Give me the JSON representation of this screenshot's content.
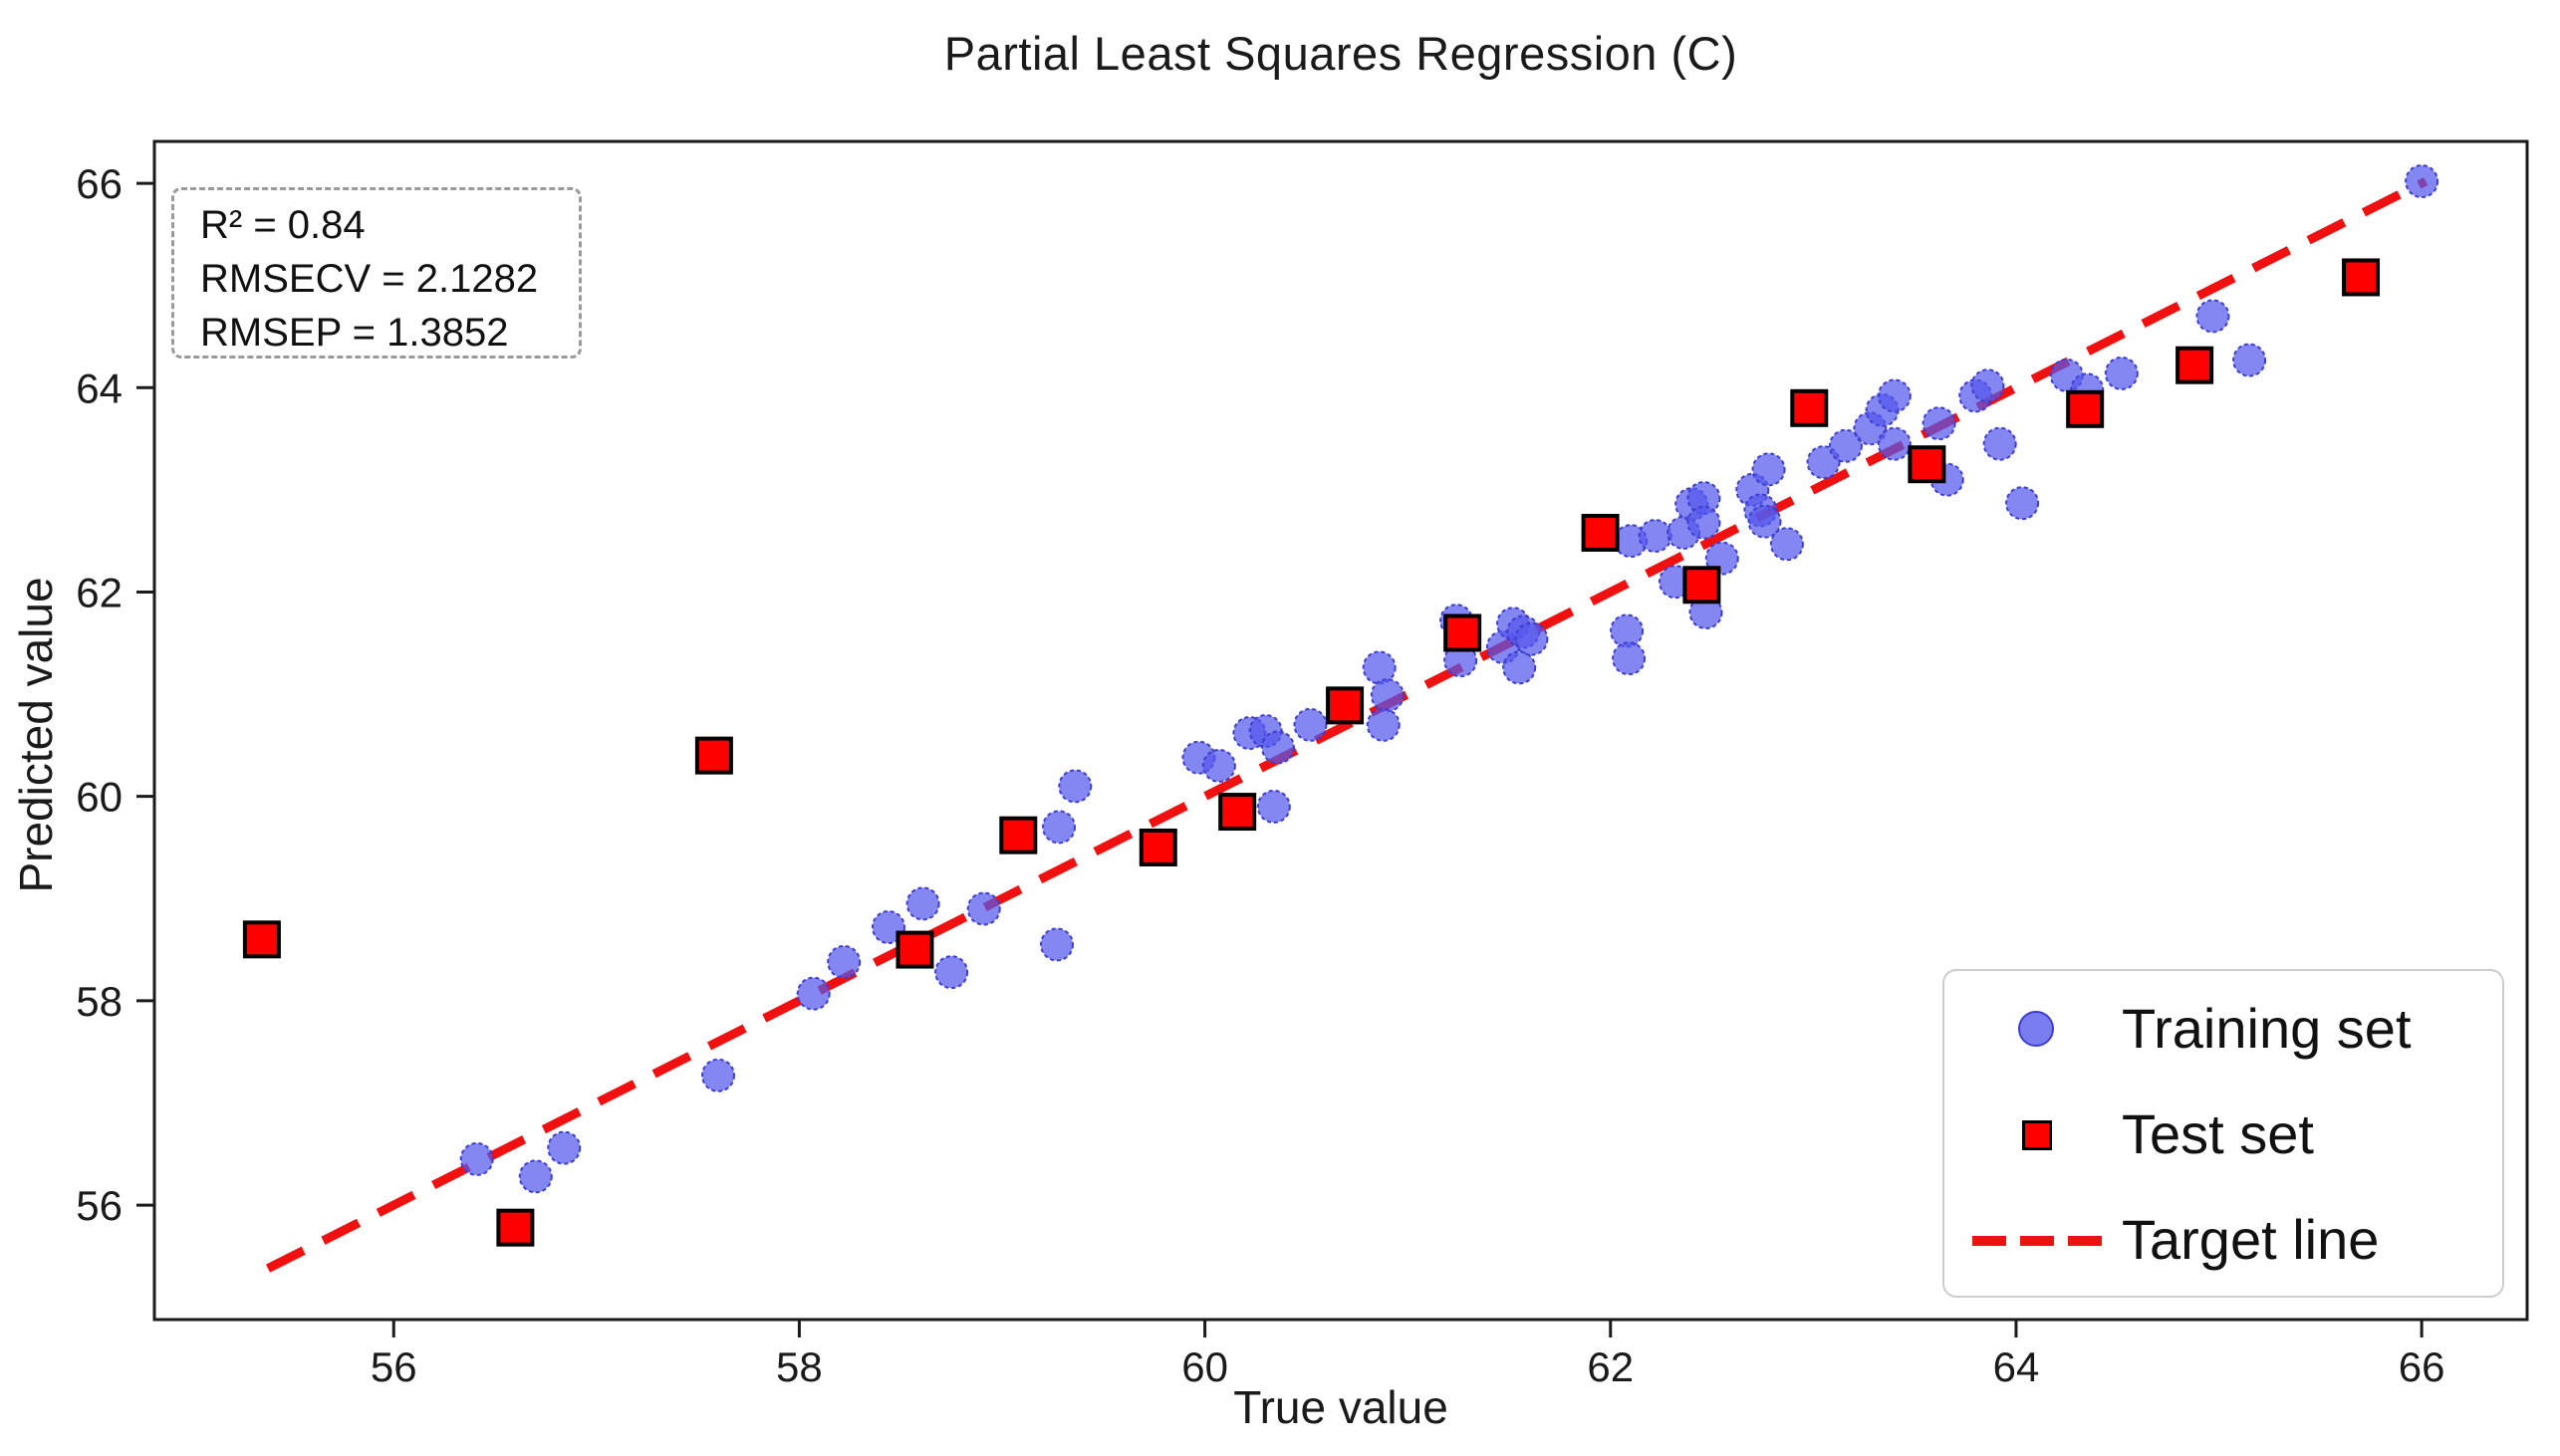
{
  "title": "Partial Least Squares Regression (C)",
  "stats_box": {
    "lines": [
      "R² = 0.84",
      "RMSECV = 2.1282",
      "RMSEP = 1.3852"
    ]
  },
  "legend": {
    "position": "lower right",
    "entries": [
      {
        "label": "Training set",
        "marker": "circle",
        "color": "#5558eb"
      },
      {
        "label": "Test set",
        "marker": "square",
        "color": "#fe0000"
      },
      {
        "label": "Target line",
        "marker": "dashed-line",
        "color": "#f01010"
      }
    ]
  },
  "chart_data": {
    "type": "scatter",
    "title": "Partial Least Squares Regression (C)",
    "xlabel": "True value",
    "ylabel": "Predicted value",
    "xlim": [
      54.82,
      66.52
    ],
    "ylim": [
      54.88,
      66.41
    ],
    "xticks": [
      56,
      58,
      60,
      62,
      64,
      66
    ],
    "yticks": [
      56,
      58,
      60,
      62,
      64,
      66
    ],
    "grid": false,
    "target_line": {
      "x1": 55.38,
      "y1": 55.38,
      "x2": 66.02,
      "y2": 66.02,
      "style": "dashed",
      "color": "#f01010"
    },
    "series": [
      {
        "name": "Training set",
        "marker": "circle",
        "fill": "rgba(85,88,235,0.72)",
        "edge": "#3c3ed2",
        "points": [
          [
            56.41,
            56.45
          ],
          [
            56.7,
            56.28
          ],
          [
            56.84,
            56.56
          ],
          [
            57.6,
            57.27
          ],
          [
            58.07,
            58.07
          ],
          [
            58.22,
            58.38
          ],
          [
            58.44,
            58.72
          ],
          [
            58.61,
            58.95
          ],
          [
            58.75,
            58.28
          ],
          [
            58.91,
            58.9
          ],
          [
            59.27,
            58.55
          ],
          [
            59.28,
            59.7
          ],
          [
            59.36,
            60.1
          ],
          [
            59.97,
            60.38
          ],
          [
            60.07,
            60.3
          ],
          [
            60.22,
            60.62
          ],
          [
            60.3,
            60.64
          ],
          [
            60.36,
            60.48
          ],
          [
            60.52,
            60.7
          ],
          [
            60.34,
            59.9
          ],
          [
            60.86,
            61.26
          ],
          [
            60.9,
            60.99
          ],
          [
            60.88,
            60.7
          ],
          [
            61.24,
            61.72
          ],
          [
            61.26,
            61.33
          ],
          [
            61.47,
            61.46
          ],
          [
            61.52,
            61.69
          ],
          [
            61.57,
            61.61
          ],
          [
            61.61,
            61.54
          ],
          [
            61.55,
            61.26
          ],
          [
            62.08,
            61.62
          ],
          [
            62.09,
            61.35
          ],
          [
            62.32,
            62.1
          ],
          [
            62.47,
            61.8
          ],
          [
            62.1,
            62.5
          ],
          [
            62.22,
            62.55
          ],
          [
            62.36,
            62.58
          ],
          [
            62.4,
            62.86
          ],
          [
            62.46,
            62.92
          ],
          [
            62.46,
            62.68
          ],
          [
            62.55,
            62.33
          ],
          [
            62.7,
            63.0
          ],
          [
            62.74,
            62.8
          ],
          [
            62.76,
            62.69
          ],
          [
            62.87,
            62.47
          ],
          [
            62.78,
            63.2
          ],
          [
            63.05,
            63.27
          ],
          [
            63.16,
            63.43
          ],
          [
            63.28,
            63.6
          ],
          [
            63.34,
            63.78
          ],
          [
            63.4,
            63.92
          ],
          [
            63.4,
            63.45
          ],
          [
            63.62,
            63.65
          ],
          [
            63.66,
            63.1
          ],
          [
            63.8,
            63.92
          ],
          [
            63.86,
            64.02
          ],
          [
            63.92,
            63.45
          ],
          [
            64.03,
            62.87
          ],
          [
            64.25,
            64.12
          ],
          [
            64.35,
            63.98
          ],
          [
            64.52,
            64.14
          ],
          [
            64.97,
            64.7
          ],
          [
            65.15,
            64.27
          ],
          [
            66.0,
            66.02
          ]
        ]
      },
      {
        "name": "Test set",
        "marker": "square",
        "fill": "#fe0000",
        "edge": "#000000",
        "points": [
          [
            55.35,
            58.6
          ],
          [
            56.6,
            55.78
          ],
          [
            57.58,
            60.4
          ],
          [
            58.57,
            58.5
          ],
          [
            59.08,
            59.62
          ],
          [
            59.77,
            59.5
          ],
          [
            60.16,
            59.85
          ],
          [
            60.69,
            60.89
          ],
          [
            61.27,
            61.6
          ],
          [
            61.95,
            62.58
          ],
          [
            62.45,
            62.07
          ],
          [
            62.98,
            63.8
          ],
          [
            63.56,
            63.25
          ],
          [
            64.34,
            63.79
          ],
          [
            64.88,
            64.22
          ],
          [
            65.7,
            65.08
          ]
        ]
      }
    ]
  },
  "axes": {
    "x_tick_labels": [
      "56",
      "58",
      "60",
      "62",
      "64",
      "66"
    ],
    "y_tick_labels": [
      "56",
      "58",
      "60",
      "62",
      "64",
      "66"
    ]
  }
}
